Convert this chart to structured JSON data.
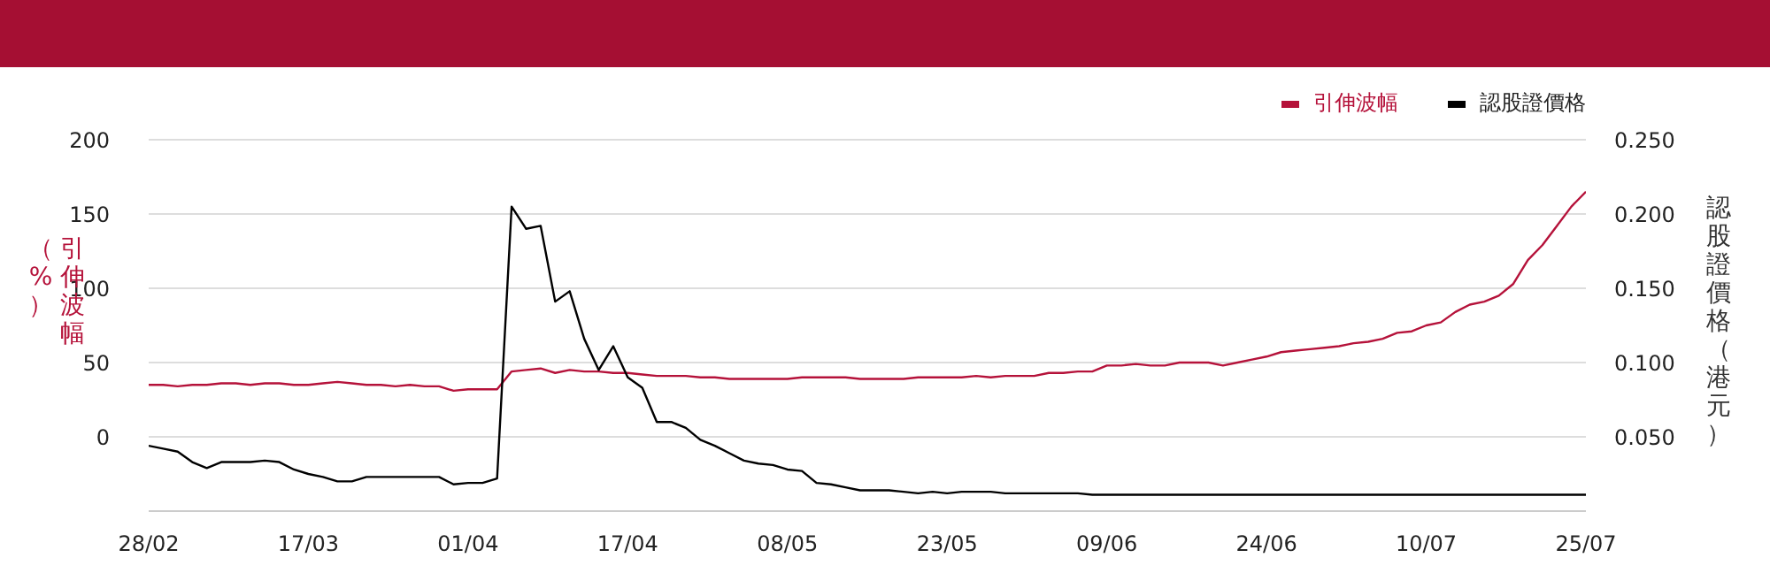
{
  "chart_data": {
    "type": "line",
    "categories": [
      "28/02",
      null,
      null,
      null,
      null,
      null,
      null,
      null,
      null,
      null,
      null,
      "17/03",
      null,
      null,
      null,
      null,
      null,
      null,
      null,
      null,
      null,
      null,
      "01/04",
      null,
      null,
      null,
      null,
      null,
      null,
      null,
      null,
      null,
      null,
      "17/04",
      null,
      null,
      null,
      null,
      null,
      null,
      null,
      null,
      null,
      null,
      "08/05",
      null,
      null,
      null,
      null,
      null,
      null,
      null,
      null,
      null,
      null,
      "23/05",
      null,
      null,
      null,
      null,
      null,
      null,
      null,
      null,
      null,
      null,
      "09/06",
      null,
      null,
      null,
      null,
      null,
      null,
      null,
      null,
      null,
      null,
      "24/06",
      null,
      null,
      null,
      null,
      null,
      null,
      null,
      null,
      null,
      null,
      "10/07",
      null,
      null,
      null,
      null,
      null,
      null,
      null,
      null,
      null,
      null,
      "25/07"
    ],
    "series": [
      {
        "name": "引伸波幅",
        "color": "#b5123a",
        "axis": "y",
        "values": [
          35,
          35,
          34,
          35,
          35,
          36,
          36,
          35,
          36,
          36,
          35,
          35,
          36,
          37,
          36,
          35,
          35,
          34,
          35,
          34,
          34,
          31,
          32,
          32,
          32,
          44,
          45,
          46,
          43,
          45,
          44,
          44,
          43,
          43,
          42,
          41,
          41,
          41,
          40,
          40,
          39,
          39,
          39,
          39,
          39,
          40,
          40,
          40,
          40,
          39,
          39,
          39,
          39,
          40,
          40,
          40,
          40,
          41,
          40,
          41,
          41,
          41,
          43,
          43,
          44,
          44,
          48,
          48,
          49,
          48,
          48,
          50,
          50,
          50,
          48,
          50,
          52,
          54,
          57,
          58,
          59,
          60,
          61,
          63,
          64,
          66,
          70,
          71,
          75,
          77,
          84,
          89,
          91,
          95,
          103,
          119,
          129,
          142,
          155,
          165
        ]
      },
      {
        "name": "認股證價格",
        "color": "#000000",
        "axis": "y2",
        "values": [
          0.044,
          0.042,
          0.04,
          0.033,
          0.029,
          0.033,
          0.033,
          0.033,
          0.034,
          0.033,
          0.028,
          0.025,
          0.023,
          0.02,
          0.02,
          0.023,
          0.023,
          0.023,
          0.023,
          0.023,
          0.023,
          0.018,
          0.019,
          0.019,
          0.022,
          0.205,
          0.19,
          0.192,
          0.141,
          0.148,
          0.116,
          0.095,
          0.111,
          0.09,
          0.083,
          0.06,
          0.06,
          0.056,
          0.048,
          0.044,
          0.039,
          0.034,
          0.032,
          0.031,
          0.028,
          0.027,
          0.019,
          0.018,
          0.016,
          0.014,
          0.014,
          0.014,
          0.013,
          0.012,
          0.013,
          0.012,
          0.013,
          0.013,
          0.013,
          0.012,
          0.012,
          0.012,
          0.012,
          0.012,
          0.012,
          0.011,
          0.011,
          0.011,
          0.011,
          0.011,
          0.011,
          0.011,
          0.011,
          0.011,
          0.011,
          0.011,
          0.011,
          0.011,
          0.011,
          0.011,
          0.011,
          0.011,
          0.011,
          0.011,
          0.011,
          0.011,
          0.011,
          0.011,
          0.011,
          0.011,
          0.011,
          0.011,
          0.011,
          0.011,
          0.011,
          0.011,
          0.011,
          0.011,
          0.011,
          0.011
        ]
      }
    ],
    "ylabel": "引伸波幅（%）",
    "y2label": "認股證價格（港元）",
    "ylim": [
      -50,
      200
    ],
    "yticks": [
      0,
      50,
      100,
      150,
      200
    ],
    "y2lim": [
      0,
      0.25
    ],
    "y2ticks": [
      {
        "value": 0.05,
        "label": "0.050"
      },
      {
        "value": 0.1,
        "label": "0.100"
      },
      {
        "value": 0.15,
        "label": "0.150"
      },
      {
        "value": 0.2,
        "label": "0.200"
      },
      {
        "value": 0.25,
        "label": "0.250"
      }
    ],
    "grid": "y",
    "legend": "top right",
    "marker": "none",
    "line_style": "solid"
  }
}
